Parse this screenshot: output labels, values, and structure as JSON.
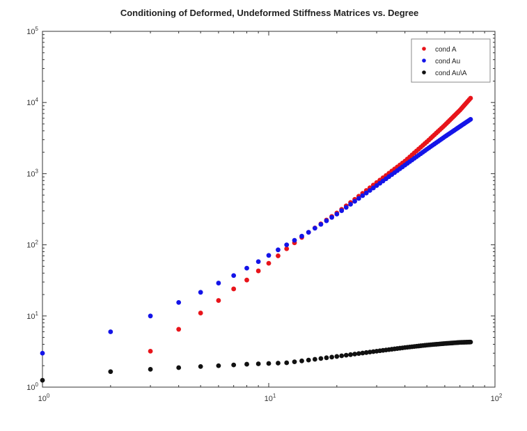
{
  "chart_data": {
    "type": "scatter",
    "title": "Conditioning of Deformed, Undeformed Stiffness Matrices vs. Degree",
    "xlabel": "",
    "ylabel": "",
    "xscale": "log",
    "yscale": "log",
    "xlim": [
      1,
      100
    ],
    "ylim": [
      1,
      100000
    ],
    "xticks": [
      {
        "base": "10",
        "exp": "0",
        "value": 1
      },
      {
        "base": "10",
        "exp": "1",
        "value": 10
      },
      {
        "base": "10",
        "exp": "2",
        "value": 100
      }
    ],
    "yticks": [
      {
        "base": "10",
        "exp": "0",
        "value": 1
      },
      {
        "base": "10",
        "exp": "1",
        "value": 10
      },
      {
        "base": "10",
        "exp": "2",
        "value": 100
      },
      {
        "base": "10",
        "exp": "3",
        "value": 1000
      },
      {
        "base": "10",
        "exp": "4",
        "value": 10000
      },
      {
        "base": "10",
        "exp": "5",
        "value": 100000
      }
    ],
    "grid": false,
    "legend_position": "top-right",
    "x_start": 1,
    "x_end": 78,
    "series": [
      {
        "name": "cond A",
        "color": "#e8141a",
        "start_degree": 3,
        "knots": [
          [
            3,
            3.2
          ],
          [
            4,
            6.5
          ],
          [
            5,
            11
          ],
          [
            6,
            16.5
          ],
          [
            7,
            24
          ],
          [
            8,
            32
          ],
          [
            9,
            43
          ],
          [
            10,
            55
          ],
          [
            11,
            70
          ],
          [
            12,
            88
          ],
          [
            15,
            150
          ],
          [
            20,
            280
          ],
          [
            30,
            750
          ],
          [
            40,
            1500
          ],
          [
            50,
            2800
          ],
          [
            60,
            4800
          ],
          [
            70,
            7800
          ],
          [
            78,
            11500
          ]
        ]
      },
      {
        "name": "cond Au",
        "color": "#1414e8",
        "start_degree": 1,
        "knots": [
          [
            1,
            3
          ],
          [
            2,
            6
          ],
          [
            3,
            10
          ],
          [
            4,
            15.5
          ],
          [
            5,
            21.5
          ],
          [
            6,
            29
          ],
          [
            7,
            37
          ],
          [
            8,
            47
          ],
          [
            9,
            58
          ],
          [
            10,
            71
          ],
          [
            11,
            85
          ],
          [
            12,
            100
          ],
          [
            15,
            150
          ],
          [
            20,
            270
          ],
          [
            30,
            680
          ],
          [
            40,
            1320
          ],
          [
            50,
            2200
          ],
          [
            60,
            3300
          ],
          [
            70,
            4600
          ],
          [
            78,
            5800
          ]
        ]
      },
      {
        "name": "cond Au\\A",
        "color": "#111111",
        "start_degree": 1,
        "knots": [
          [
            1,
            1.25
          ],
          [
            2,
            1.65
          ],
          [
            3,
            1.78
          ],
          [
            4,
            1.88
          ],
          [
            5,
            1.95
          ],
          [
            6,
            2.0
          ],
          [
            7,
            2.05
          ],
          [
            8,
            2.1
          ],
          [
            10,
            2.15
          ],
          [
            12,
            2.2
          ],
          [
            15,
            2.4
          ],
          [
            20,
            2.7
          ],
          [
            30,
            3.2
          ],
          [
            40,
            3.6
          ],
          [
            50,
            3.9
          ],
          [
            60,
            4.1
          ],
          [
            70,
            4.25
          ],
          [
            78,
            4.3
          ]
        ]
      }
    ]
  },
  "colors": {
    "axis": "#333333",
    "text": "#222222"
  }
}
